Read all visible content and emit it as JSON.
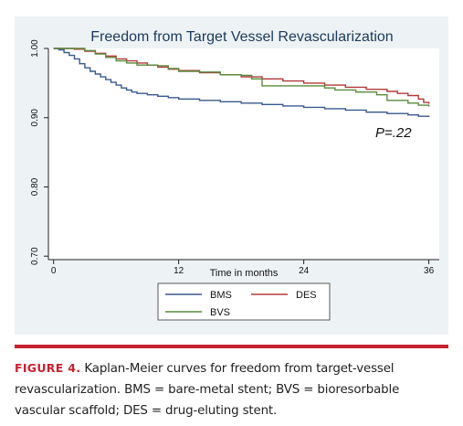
{
  "figure": {
    "label": "FIGURE 4.",
    "caption": "Kaplan-Meier curves for freedom from target-vessel revascularization. BMS = bare-metal stent; BVS = bioresorbable vascular scaffold; DES = drug-eluting stent."
  },
  "chart_data": {
    "type": "line",
    "step": true,
    "title": "Freedom from Target Vessel Revascularization",
    "xlabel": "Time in months",
    "ylabel": "",
    "xlim": [
      -0.5,
      37
    ],
    "ylim": [
      0.695,
      1.0
    ],
    "xticks": [
      0,
      12,
      24,
      36
    ],
    "yticks": [
      "0.70",
      "0.80",
      "0.90",
      "1.00"
    ],
    "grid": false,
    "legend_position": "bottom",
    "annotation": "P=.22",
    "series": [
      {
        "name": "BMS",
        "color": "#3a5a8c",
        "points": [
          [
            0,
            1.0
          ],
          [
            0.5,
            0.998
          ],
          [
            1,
            0.994
          ],
          [
            1.5,
            0.99
          ],
          [
            2,
            0.985
          ],
          [
            2.5,
            0.978
          ],
          [
            3,
            0.972
          ],
          [
            3.5,
            0.967
          ],
          [
            4,
            0.963
          ],
          [
            4.5,
            0.959
          ],
          [
            5,
            0.955
          ],
          [
            5.5,
            0.951
          ],
          [
            6,
            0.947
          ],
          [
            6.5,
            0.943
          ],
          [
            7,
            0.94
          ],
          [
            7.5,
            0.937
          ],
          [
            8,
            0.935
          ],
          [
            9,
            0.933
          ],
          [
            10,
            0.931
          ],
          [
            11,
            0.929
          ],
          [
            12,
            0.927
          ],
          [
            14,
            0.925
          ],
          [
            16,
            0.923
          ],
          [
            18,
            0.921
          ],
          [
            20,
            0.919
          ],
          [
            22,
            0.917
          ],
          [
            24,
            0.915
          ],
          [
            26,
            0.913
          ],
          [
            28,
            0.911
          ],
          [
            30,
            0.908
          ],
          [
            32,
            0.906
          ],
          [
            34,
            0.904
          ],
          [
            35,
            0.902
          ],
          [
            36,
            0.901
          ]
        ]
      },
      {
        "name": "DES",
        "color": "#b03a3a",
        "points": [
          [
            0,
            1.0
          ],
          [
            2,
            0.999
          ],
          [
            3,
            0.996
          ],
          [
            4,
            0.993
          ],
          [
            5,
            0.989
          ],
          [
            6,
            0.985
          ],
          [
            7,
            0.982
          ],
          [
            8,
            0.979
          ],
          [
            9,
            0.976
          ],
          [
            10,
            0.973
          ],
          [
            11,
            0.97
          ],
          [
            12,
            0.968
          ],
          [
            14,
            0.965
          ],
          [
            16,
            0.962
          ],
          [
            18,
            0.959
          ],
          [
            20,
            0.956
          ],
          [
            22,
            0.953
          ],
          [
            24,
            0.95
          ],
          [
            26,
            0.947
          ],
          [
            28,
            0.944
          ],
          [
            30,
            0.941
          ],
          [
            32,
            0.938
          ],
          [
            33,
            0.935
          ],
          [
            34,
            0.932
          ],
          [
            35,
            0.927
          ],
          [
            35.5,
            0.922
          ],
          [
            36,
            0.92
          ]
        ]
      },
      {
        "name": "BVS",
        "color": "#5a8a3c",
        "points": [
          [
            0,
            1.0
          ],
          [
            3,
            0.997
          ],
          [
            4,
            0.992
          ],
          [
            5,
            0.987
          ],
          [
            6,
            0.982
          ],
          [
            7,
            0.979
          ],
          [
            8,
            0.976
          ],
          [
            10,
            0.975
          ],
          [
            11,
            0.971
          ],
          [
            12,
            0.967
          ],
          [
            14,
            0.966
          ],
          [
            16,
            0.962
          ],
          [
            18,
            0.961
          ],
          [
            19,
            0.956
          ],
          [
            20,
            0.946
          ],
          [
            22,
            0.946
          ],
          [
            24,
            0.946
          ],
          [
            26,
            0.943
          ],
          [
            27,
            0.94
          ],
          [
            29,
            0.937
          ],
          [
            31,
            0.933
          ],
          [
            32,
            0.925
          ],
          [
            34,
            0.921
          ],
          [
            35,
            0.918
          ],
          [
            36,
            0.916
          ]
        ]
      }
    ]
  }
}
